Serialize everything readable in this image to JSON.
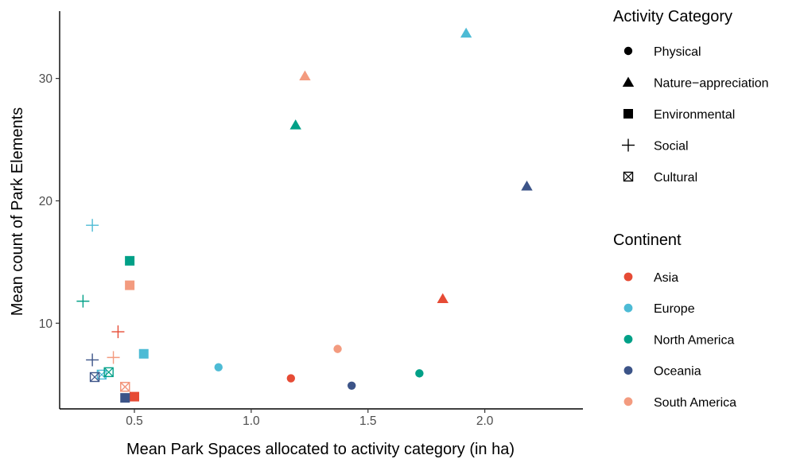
{
  "chart_data": {
    "type": "scatter",
    "xlabel": "Mean Park Spaces allocated to activity category (in ha)",
    "ylabel": "Mean count of Park Elements",
    "xlim": [
      0.18,
      2.42
    ],
    "ylim": [
      3.0,
      35.5
    ],
    "x_ticks": [
      0.5,
      1.0,
      1.5,
      2.0
    ],
    "x_tick_labels": [
      "0.5",
      "1.0",
      "1.5",
      "2.0"
    ],
    "y_ticks": [
      10,
      20,
      30
    ],
    "y_tick_labels": [
      "10",
      "20",
      "30"
    ],
    "grid": false,
    "legend_position": "right",
    "shape_legend": {
      "title": "Activity Category",
      "entries": [
        {
          "label": "Physical",
          "shape": "circle"
        },
        {
          "label": "Nature−appreciation",
          "shape": "triangle"
        },
        {
          "label": "Environmental",
          "shape": "square"
        },
        {
          "label": "Social",
          "shape": "plus"
        },
        {
          "label": "Cultural",
          "shape": "boxed-x"
        }
      ]
    },
    "color_legend": {
      "title": "Continent",
      "entries": [
        {
          "label": "Asia",
          "color": "#E64B35"
        },
        {
          "label": "Europe",
          "color": "#4DBBD5"
        },
        {
          "label": "North America",
          "color": "#00A087"
        },
        {
          "label": "Oceania",
          "color": "#3C5488"
        },
        {
          "label": "South America",
          "color": "#F39B7F"
        }
      ]
    },
    "points": [
      {
        "continent": "Asia",
        "category": "Physical",
        "x": 1.17,
        "y": 5.5
      },
      {
        "continent": "Europe",
        "category": "Physical",
        "x": 0.86,
        "y": 6.4
      },
      {
        "continent": "North America",
        "category": "Physical",
        "x": 1.72,
        "y": 5.9
      },
      {
        "continent": "Oceania",
        "category": "Physical",
        "x": 1.43,
        "y": 4.9
      },
      {
        "continent": "South America",
        "category": "Physical",
        "x": 1.37,
        "y": 7.9
      },
      {
        "continent": "Asia",
        "category": "Nature−appreciation",
        "x": 1.82,
        "y": 12.0
      },
      {
        "continent": "Europe",
        "category": "Nature−appreciation",
        "x": 1.92,
        "y": 33.7
      },
      {
        "continent": "North America",
        "category": "Nature−appreciation",
        "x": 1.19,
        "y": 26.2
      },
      {
        "continent": "Oceania",
        "category": "Nature−appreciation",
        "x": 2.18,
        "y": 21.2
      },
      {
        "continent": "South America",
        "category": "Nature−appreciation",
        "x": 1.23,
        "y": 30.2
      },
      {
        "continent": "Asia",
        "category": "Environmental",
        "x": 0.5,
        "y": 4.0
      },
      {
        "continent": "Europe",
        "category": "Environmental",
        "x": 0.54,
        "y": 7.5
      },
      {
        "continent": "North America",
        "category": "Environmental",
        "x": 0.48,
        "y": 15.1
      },
      {
        "continent": "Oceania",
        "category": "Environmental",
        "x": 0.46,
        "y": 3.9
      },
      {
        "continent": "South America",
        "category": "Environmental",
        "x": 0.48,
        "y": 13.1
      },
      {
        "continent": "Asia",
        "category": "Social",
        "x": 0.43,
        "y": 9.3
      },
      {
        "continent": "Europe",
        "category": "Social",
        "x": 0.32,
        "y": 18.0
      },
      {
        "continent": "North America",
        "category": "Social",
        "x": 0.28,
        "y": 11.8
      },
      {
        "continent": "Oceania",
        "category": "Social",
        "x": 0.32,
        "y": 7.0
      },
      {
        "continent": "South America",
        "category": "Social",
        "x": 0.41,
        "y": 7.2
      },
      {
        "continent": "Asia",
        "category": "Cultural",
        "x": 0.46,
        "y": 4.8
      },
      {
        "continent": "Europe",
        "category": "Cultural",
        "x": 0.36,
        "y": 5.8
      },
      {
        "continent": "North America",
        "category": "Cultural",
        "x": 0.39,
        "y": 6.0
      },
      {
        "continent": "Oceania",
        "category": "Cultural",
        "x": 0.33,
        "y": 5.6
      },
      {
        "continent": "South America",
        "category": "Cultural",
        "x": 0.46,
        "y": 4.8
      }
    ]
  }
}
